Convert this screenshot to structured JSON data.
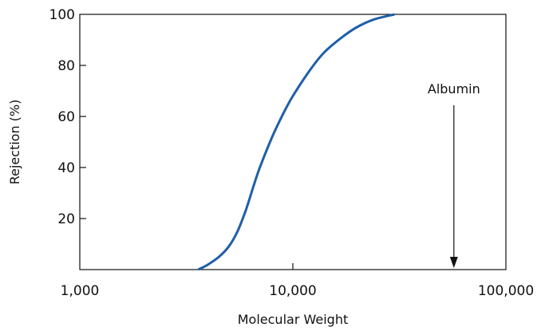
{
  "chart_data": {
    "type": "line",
    "title": "",
    "xlabel": "Molecular Weight",
    "ylabel": "Rejection (%)",
    "x_scale": "log",
    "xlim": [
      1000,
      100000
    ],
    "ylim": [
      0,
      100
    ],
    "x_ticks": [
      {
        "value": 1000,
        "label": "1,000"
      },
      {
        "value": 10000,
        "label": "10,000"
      },
      {
        "value": 100000,
        "label": "100,000"
      }
    ],
    "y_ticks": [
      {
        "value": 20,
        "label": "20"
      },
      {
        "value": 40,
        "label": "40"
      },
      {
        "value": 60,
        "label": "60"
      },
      {
        "value": 80,
        "label": "80"
      },
      {
        "value": 100,
        "label": "100"
      }
    ],
    "grid": false,
    "line_color": "#1f5fa8",
    "series": [
      {
        "x": [
          3600,
          4000,
          4500,
          5000,
          5500,
          6000,
          6500,
          7000,
          8000,
          9000,
          10000,
          12000,
          14000,
          17000,
          20000,
          24000,
          30000
        ],
        "values": [
          0,
          2,
          5,
          9,
          15,
          23,
          32,
          40,
          52,
          61,
          68,
          78,
          85,
          91,
          95,
          98,
          100
        ]
      }
    ],
    "annotations": [
      {
        "text": "Albumin",
        "x": 57000,
        "arrow": "down"
      }
    ]
  }
}
